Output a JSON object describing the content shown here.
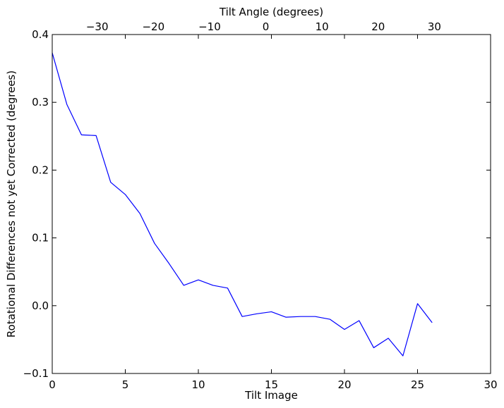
{
  "chart_data": {
    "type": "line",
    "title": "",
    "xlabel": "Tilt Image",
    "x2label": "Tilt Angle (degrees)",
    "ylabel": "Rotational Differences not yet Corrected (degrees)",
    "xlim": [
      0,
      30
    ],
    "ylim": [
      -0.1,
      0.4
    ],
    "x2lim": [
      -38,
      40
    ],
    "xticks": [
      0,
      5,
      10,
      15,
      20,
      25,
      30
    ],
    "yticks": [
      -0.1,
      0.0,
      0.1,
      0.2,
      0.3,
      0.4
    ],
    "x2ticks": [
      -30,
      -20,
      -10,
      0,
      10,
      20,
      30
    ],
    "xtick_labels": [
      "0",
      "5",
      "10",
      "15",
      "20",
      "25",
      "30"
    ],
    "ytick_labels": [
      "−0.1",
      "0.0",
      "0.1",
      "0.2",
      "0.3",
      "0.4"
    ],
    "x2tick_labels": [
      "−30",
      "−20",
      "−10",
      "0",
      "10",
      "20",
      "30"
    ],
    "grid": false,
    "series": [
      {
        "color": "#0000ff",
        "x": [
          0,
          1,
          2,
          3,
          4,
          5,
          6,
          7,
          8,
          9,
          10,
          11,
          12,
          13,
          14,
          15,
          16,
          17,
          18,
          19,
          20,
          21,
          22,
          23,
          24,
          25,
          26
        ],
        "y": [
          0.373,
          0.297,
          0.252,
          0.251,
          0.182,
          0.164,
          0.136,
          0.092,
          0.062,
          0.03,
          0.038,
          0.03,
          0.026,
          -0.016,
          -0.012,
          -0.009,
          -0.017,
          -0.016,
          -0.016,
          -0.02,
          -0.035,
          -0.022,
          -0.062,
          -0.048,
          -0.074,
          0.003,
          -0.025
        ]
      }
    ]
  }
}
